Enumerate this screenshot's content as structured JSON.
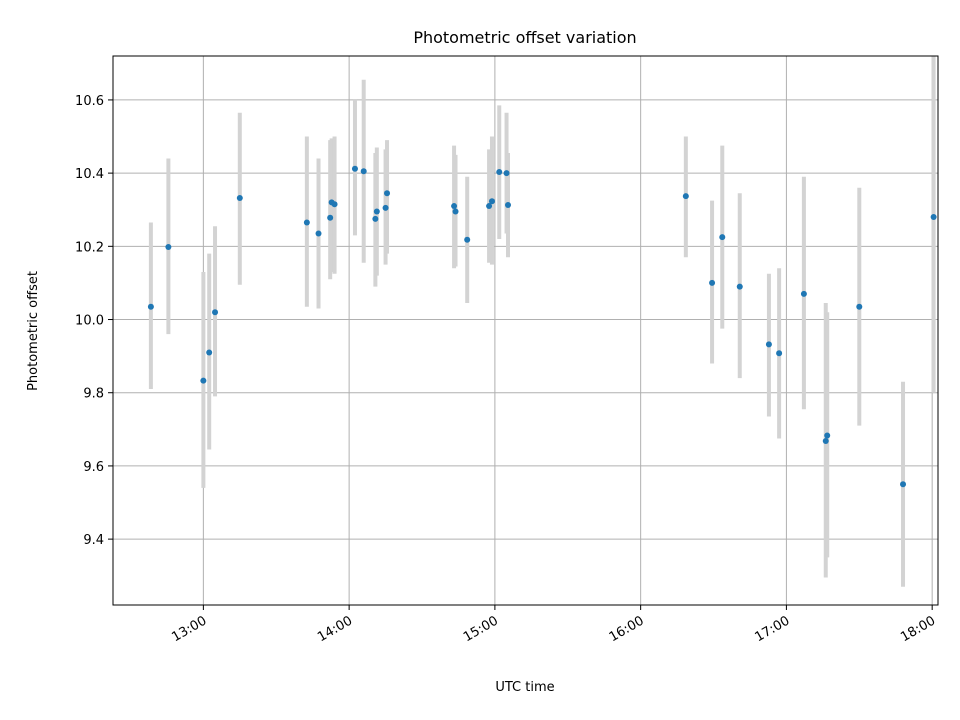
{
  "chart_data": {
    "type": "scatter",
    "title": "Photometric offset variation",
    "xlabel": "UTC time",
    "ylabel": "Photometric offset",
    "x_unit": "hours",
    "xlim": [
      12.38,
      18.04
    ],
    "ylim": [
      9.22,
      10.72
    ],
    "x_ticks": [
      13,
      14,
      15,
      16,
      17,
      18
    ],
    "x_tick_labels": [
      "13:00",
      "14:00",
      "15:00",
      "16:00",
      "17:00",
      "18:00"
    ],
    "y_ticks": [
      9.4,
      9.6,
      9.8,
      10.0,
      10.2,
      10.4,
      10.6
    ],
    "y_tick_labels": [
      "9.4",
      "9.6",
      "9.8",
      "10.0",
      "10.2",
      "10.4",
      "10.6"
    ],
    "grid": true,
    "series": [
      {
        "color": "#1f77b4",
        "error_color": "#d3d3d3",
        "points": [
          {
            "x": 12.64,
            "y": 10.035,
            "lo": 9.81,
            "hi": 10.265
          },
          {
            "x": 12.76,
            "y": 10.198,
            "lo": 9.96,
            "hi": 10.44
          },
          {
            "x": 13.0,
            "y": 9.833,
            "lo": 9.54,
            "hi": 10.13
          },
          {
            "x": 13.04,
            "y": 9.91,
            "lo": 9.645,
            "hi": 10.18
          },
          {
            "x": 13.08,
            "y": 10.02,
            "lo": 9.79,
            "hi": 10.255
          },
          {
            "x": 13.25,
            "y": 10.332,
            "lo": 10.095,
            "hi": 10.565
          },
          {
            "x": 13.71,
            "y": 10.265,
            "lo": 10.035,
            "hi": 10.5
          },
          {
            "x": 13.79,
            "y": 10.235,
            "lo": 10.03,
            "hi": 10.44
          },
          {
            "x": 13.87,
            "y": 10.278,
            "lo": 10.11,
            "hi": 10.49
          },
          {
            "x": 13.88,
            "y": 10.32,
            "lo": 10.13,
            "hi": 10.495
          },
          {
            "x": 13.9,
            "y": 10.315,
            "lo": 10.125,
            "hi": 10.5
          },
          {
            "x": 14.04,
            "y": 10.412,
            "lo": 10.23,
            "hi": 10.6
          },
          {
            "x": 14.1,
            "y": 10.405,
            "lo": 10.155,
            "hi": 10.655
          },
          {
            "x": 14.18,
            "y": 10.275,
            "lo": 10.09,
            "hi": 10.455
          },
          {
            "x": 14.19,
            "y": 10.295,
            "lo": 10.12,
            "hi": 10.47
          },
          {
            "x": 14.25,
            "y": 10.305,
            "lo": 10.15,
            "hi": 10.465
          },
          {
            "x": 14.26,
            "y": 10.345,
            "lo": 10.18,
            "hi": 10.49
          },
          {
            "x": 14.72,
            "y": 10.31,
            "lo": 10.14,
            "hi": 10.475
          },
          {
            "x": 14.73,
            "y": 10.295,
            "lo": 10.145,
            "hi": 10.45
          },
          {
            "x": 14.81,
            "y": 10.218,
            "lo": 10.045,
            "hi": 10.39
          },
          {
            "x": 14.96,
            "y": 10.31,
            "lo": 10.155,
            "hi": 10.465
          },
          {
            "x": 14.98,
            "y": 10.323,
            "lo": 10.15,
            "hi": 10.5
          },
          {
            "x": 15.03,
            "y": 10.403,
            "lo": 10.22,
            "hi": 10.585
          },
          {
            "x": 15.08,
            "y": 10.4,
            "lo": 10.235,
            "hi": 10.565
          },
          {
            "x": 15.09,
            "y": 10.313,
            "lo": 10.17,
            "hi": 10.455
          },
          {
            "x": 16.31,
            "y": 10.337,
            "lo": 10.17,
            "hi": 10.5
          },
          {
            "x": 16.49,
            "y": 10.1,
            "lo": 9.88,
            "hi": 10.325
          },
          {
            "x": 16.56,
            "y": 10.225,
            "lo": 9.975,
            "hi": 10.475
          },
          {
            "x": 16.68,
            "y": 10.09,
            "lo": 9.84,
            "hi": 10.345
          },
          {
            "x": 16.88,
            "y": 9.932,
            "lo": 9.735,
            "hi": 10.125
          },
          {
            "x": 16.95,
            "y": 9.908,
            "lo": 9.675,
            "hi": 10.14
          },
          {
            "x": 17.12,
            "y": 10.07,
            "lo": 9.755,
            "hi": 10.39
          },
          {
            "x": 17.27,
            "y": 9.668,
            "lo": 9.295,
            "hi": 10.045
          },
          {
            "x": 17.28,
            "y": 9.683,
            "lo": 9.35,
            "hi": 10.02
          },
          {
            "x": 17.5,
            "y": 10.035,
            "lo": 9.71,
            "hi": 10.36
          },
          {
            "x": 17.8,
            "y": 9.55,
            "lo": 9.27,
            "hi": 9.83
          },
          {
            "x": 18.01,
            "y": 10.28,
            "lo": 9.8,
            "hi": 10.75
          }
        ]
      }
    ]
  }
}
